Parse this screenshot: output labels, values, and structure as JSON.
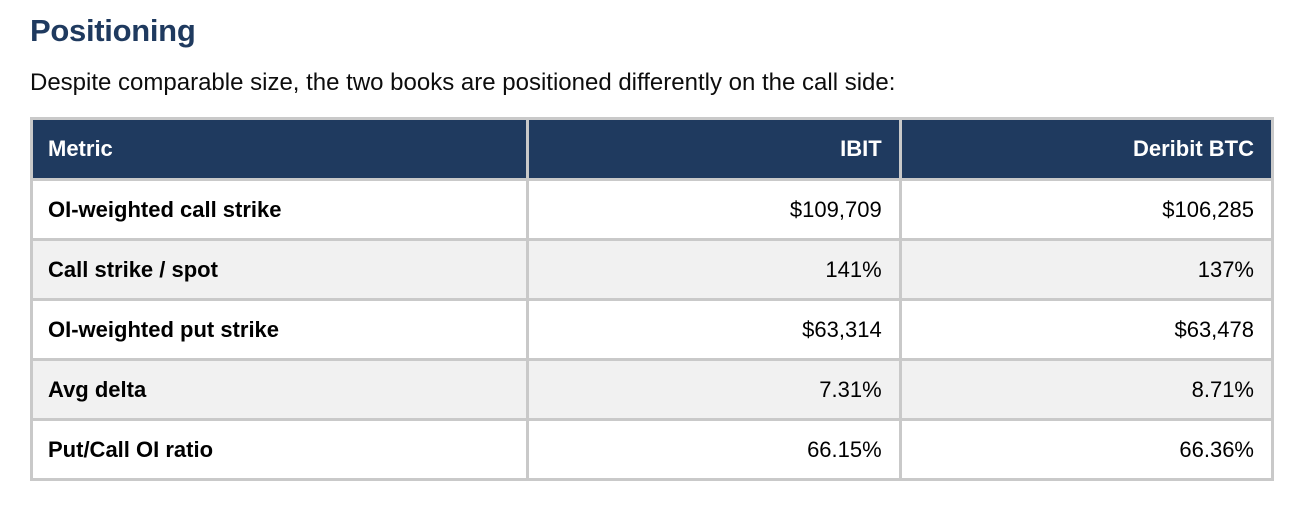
{
  "page": {
    "heading": "Positioning",
    "intro": "Despite comparable size, the two books are positioned differently on the call side:"
  },
  "table": {
    "columns": [
      {
        "label": "Metric",
        "align": "left"
      },
      {
        "label": "IBIT",
        "align": "right"
      },
      {
        "label": "Deribit BTC",
        "align": "right"
      }
    ],
    "rows": [
      {
        "metric": "OI-weighted call strike",
        "ibit": "$109,709",
        "deribit_btc": "$106,285"
      },
      {
        "metric": "Call strike / spot",
        "ibit": "141%",
        "deribit_btc": "137%"
      },
      {
        "metric": "OI-weighted put strike",
        "ibit": "$63,314",
        "deribit_btc": "$63,478"
      },
      {
        "metric": "Avg delta",
        "ibit": "7.31%",
        "deribit_btc": "8.71%"
      },
      {
        "metric": "Put/Call OI ratio",
        "ibit": "66.15%",
        "deribit_btc": "66.36%"
      }
    ]
  },
  "colors": {
    "header_bg": "#1f3a5f",
    "header_text": "#ffffff",
    "heading_text": "#1f3a5f",
    "row_bg": "#ffffff",
    "row_alt_bg": "#f1f1f1",
    "border": "#c9c9c9",
    "body_text": "#000000"
  }
}
